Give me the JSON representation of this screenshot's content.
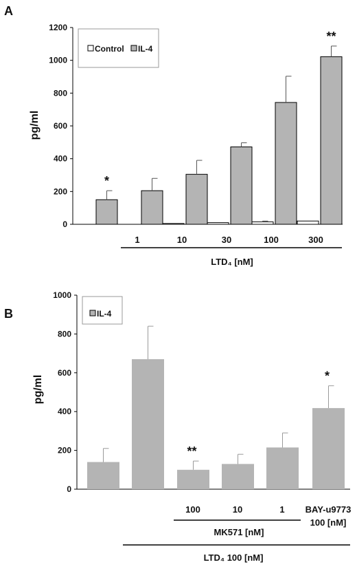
{
  "chart_data": [
    {
      "panel_label": "A",
      "type": "bar",
      "ylabel": "pg/ml",
      "ylim": [
        0,
        1200
      ],
      "yticks": [
        "0",
        "200",
        "400",
        "600",
        "800",
        "1000",
        "1200"
      ],
      "legend": {
        "position": "top-left",
        "entries": [
          "Control",
          "IL-4"
        ]
      },
      "series": [
        {
          "name": "Control",
          "color": "#ffffff",
          "values": [
            null,
            0,
            5,
            10,
            15,
            20
          ],
          "errors": [
            null,
            0,
            0,
            0,
            5,
            0
          ]
        },
        {
          "name": "IL-4",
          "color": "#b4b4b4",
          "values": [
            150,
            205,
            305,
            472,
            743,
            1022
          ],
          "errors": [
            55,
            75,
            85,
            25,
            160,
            65
          ]
        }
      ],
      "significance": [
        {
          "group": 0,
          "label": "*"
        },
        {
          "group": 5,
          "label": "**"
        }
      ],
      "group_labels": [
        "1",
        "10",
        "30",
        "100",
        "300"
      ],
      "group_caption": "LTD₄ [nM]"
    },
    {
      "panel_label": "B",
      "type": "bar",
      "ylabel": "pg/ml",
      "ylim": [
        0,
        1000
      ],
      "yticks": [
        "0",
        "200",
        "400",
        "600",
        "800",
        "1000"
      ],
      "legend": {
        "position": "top-left",
        "entries": [
          "IL-4"
        ]
      },
      "series": [
        {
          "name": "IL-4",
          "color": "#b4b4b4",
          "values": [
            140,
            670,
            100,
            130,
            215,
            418
          ],
          "errors": [
            70,
            170,
            45,
            50,
            75,
            115
          ]
        }
      ],
      "significance": [
        {
          "group": 2,
          "label": "**"
        },
        {
          "group": 5,
          "label": "*"
        }
      ],
      "group_labels": [
        "100",
        "10",
        "1"
      ],
      "bay_label_line1": "BAY-u9773",
      "bay_label_line2": "100 [nM]",
      "mk_caption": "MK571 [nM]",
      "ltd_caption": "LTD₄ 100 [nM]"
    }
  ]
}
